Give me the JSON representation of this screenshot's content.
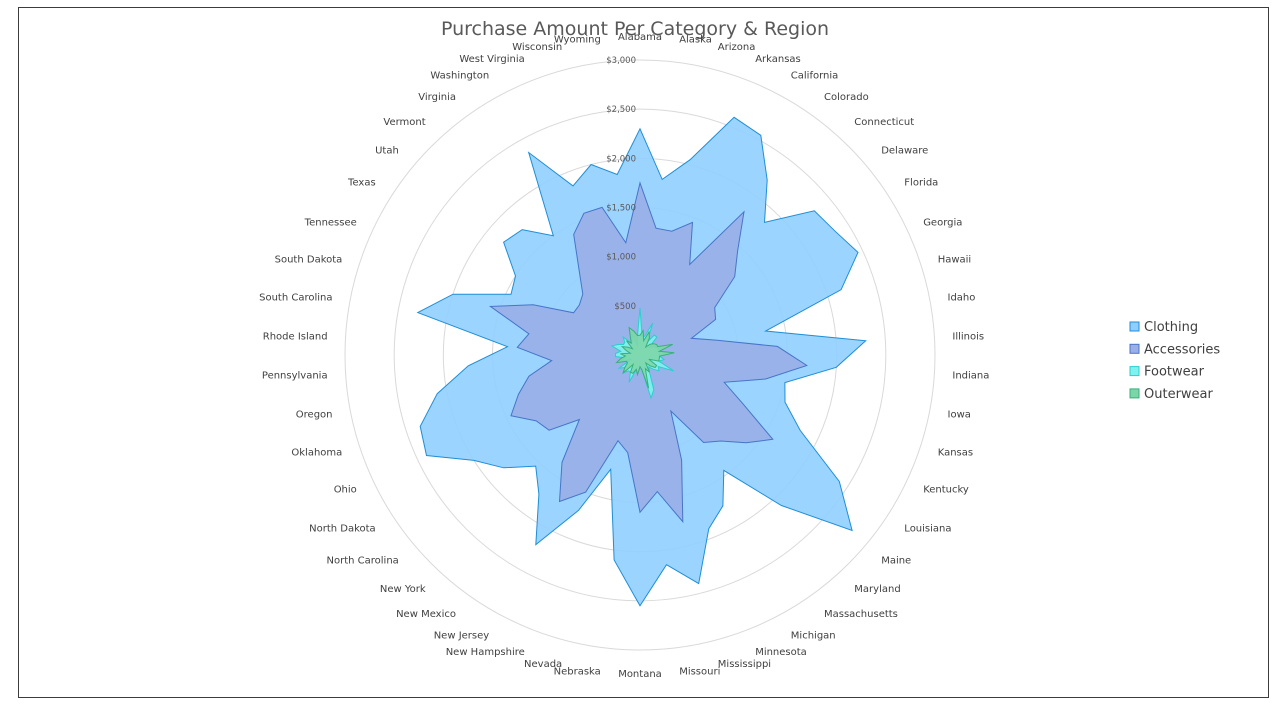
{
  "chart_data": {
    "type": "radar",
    "title": "Purchase Amount Per Category & Region",
    "radial_axis": {
      "min": 0,
      "max": 3000,
      "ticks": [
        500,
        1000,
        1500,
        2000,
        2500,
        3000
      ],
      "tick_labels": [
        "$500",
        "$1,000",
        "$1,500",
        "$2,000",
        "$2,500",
        "$3,000"
      ]
    },
    "categories": [
      "Alabama",
      "Alaska",
      "Arizona",
      "Arkansas",
      "California",
      "Colorado",
      "Connecticut",
      "Delaware",
      "Florida",
      "Georgia",
      "Hawaii",
      "Idaho",
      "Illinois",
      "Indiana",
      "Iowa",
      "Kansas",
      "Kentucky",
      "Louisiana",
      "Maine",
      "Maryland",
      "Massachusetts",
      "Michigan",
      "Minnesota",
      "Mississippi",
      "Missouri",
      "Montana",
      "Nebraska",
      "Nevada",
      "New Hampshire",
      "New Jersey",
      "New Mexico",
      "New York",
      "North Carolina",
      "North Dakota",
      "Ohio",
      "Oklahoma",
      "Oregon",
      "Pennsylvania",
      "Rhode Island",
      "South Carolina",
      "South Dakota",
      "Tennessee",
      "Texas",
      "Utah",
      "Vermont",
      "Virginia",
      "Washington",
      "West Virginia",
      "Wisconsin",
      "Wyoming"
    ],
    "legend_position": "right",
    "grid": true,
    "series": [
      {
        "name": "Clothing",
        "color": "#8fcfff",
        "stroke": "#1f8ed6",
        "values": [
          2300,
          1800,
          2050,
          2600,
          2550,
          2200,
          1850,
          2300,
          2350,
          2450,
          2150,
          1300,
          2300,
          2000,
          1500,
          1550,
          1800,
          2400,
          2800,
          2100,
          1450,
          1750,
          1900,
          2400,
          2150,
          2550,
          2100,
          1200,
          1700,
          2200,
          1750,
          1550,
          1800,
          2000,
          2400,
          2350,
          2100,
          1750,
          1350,
          2300,
          2000,
          1450,
          1500,
          1800,
          1750,
          1500,
          2350,
          1850,
          2000,
          1850
        ]
      },
      {
        "name": "Accessories",
        "color": "#9aaee8",
        "stroke": "#4675c8",
        "values": [
          1750,
          1300,
          1300,
          1450,
          1050,
          1800,
          1450,
          1250,
          900,
          850,
          550,
          800,
          1400,
          1700,
          1300,
          900,
          1150,
          1600,
          1400,
          1200,
          1100,
          650,
          1150,
          1750,
          1400,
          1600,
          1000,
          900,
          1500,
          1700,
          1350,
          900,
          1200,
          1250,
          1450,
          1300,
          1150,
          900,
          1250,
          1150,
          1600,
          1200,
          800,
          800,
          850,
          1050,
          1400,
          1550,
          1550,
          1150
        ]
      },
      {
        "name": "Footwear",
        "color": "#7ff2ef",
        "stroke": "#29d0cc",
        "values": [
          480,
          180,
          200,
          350,
          150,
          250,
          250,
          120,
          160,
          180,
          200,
          200,
          200,
          200,
          250,
          200,
          380,
          220,
          250,
          200,
          150,
          200,
          380,
          450,
          150,
          120,
          200,
          150,
          300,
          200,
          200,
          250,
          200,
          250,
          100,
          200,
          150,
          250,
          250,
          200,
          300,
          250,
          200,
          200,
          250,
          150,
          150,
          250,
          100,
          200
        ]
      },
      {
        "name": "Outerwear",
        "color": "#7dd6a8",
        "stroke": "#38b07a",
        "values": [
          200,
          250,
          150,
          250,
          200,
          100,
          150,
          180,
          200,
          200,
          350,
          200,
          350,
          200,
          200,
          200,
          100,
          200,
          200,
          150,
          100,
          200,
          150,
          350,
          150,
          120,
          200,
          150,
          200,
          200,
          120,
          250,
          200,
          150,
          150,
          250,
          200,
          150,
          200,
          100,
          150,
          200,
          150,
          100,
          200,
          150,
          200,
          300,
          250,
          200
        ]
      }
    ]
  }
}
